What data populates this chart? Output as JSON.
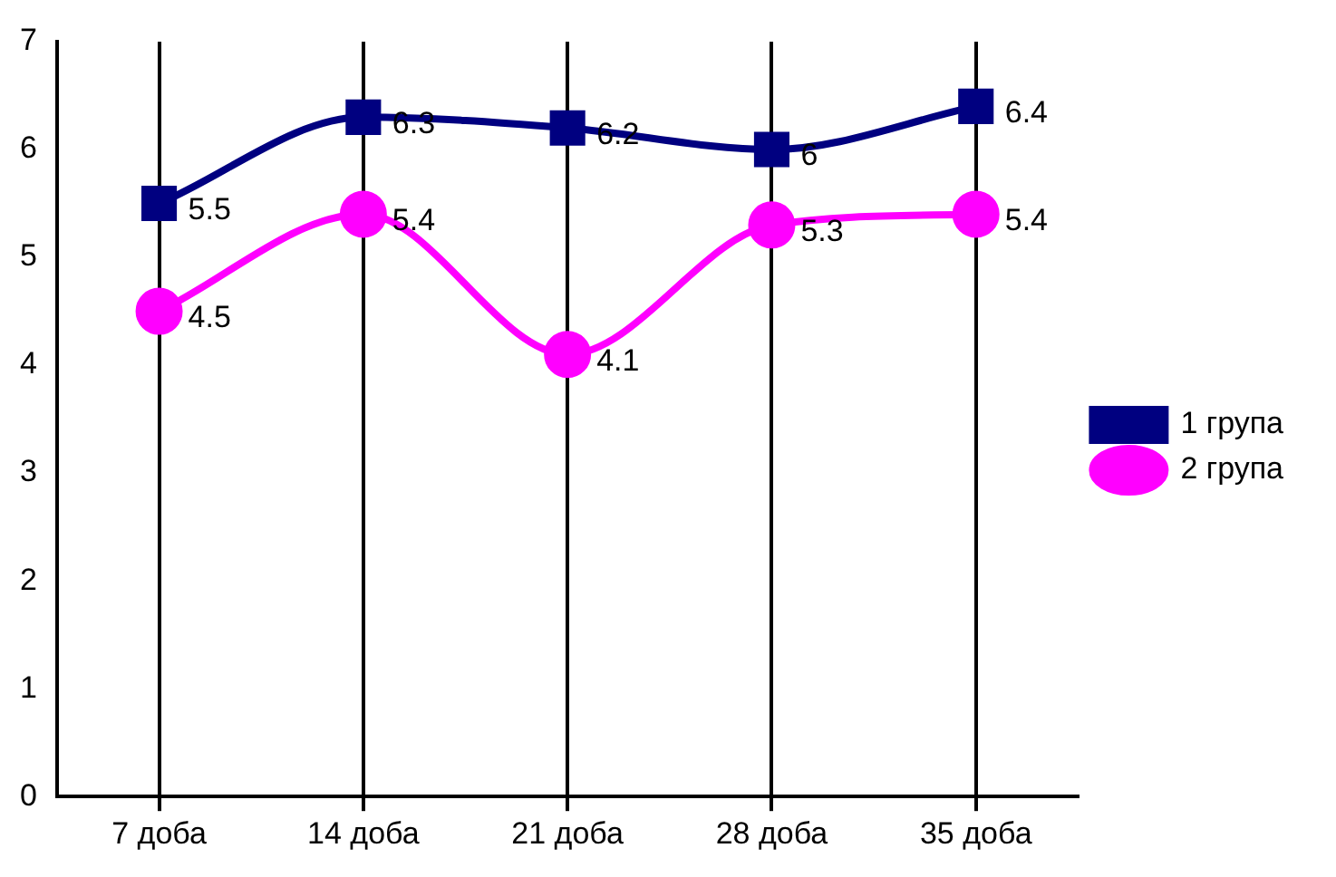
{
  "chart_data": {
    "type": "line",
    "categories": [
      "7 доба",
      "14 доба",
      "21 доба",
      "28 доба",
      "35 доба"
    ],
    "series": [
      {
        "name": "1 група",
        "color": "#000080",
        "marker": "square",
        "values": [
          5.5,
          6.3,
          6.2,
          6,
          6.4
        ]
      },
      {
        "name": "2 група",
        "color": "#ff00ff",
        "marker": "circle",
        "values": [
          4.5,
          5.4,
          4.1,
          5.3,
          5.4
        ]
      }
    ],
    "ylim": [
      0,
      7
    ],
    "yticks": [
      0,
      1,
      2,
      3,
      4,
      5,
      6,
      7
    ],
    "grid": "x",
    "legend": "right",
    "data_labels": true
  }
}
